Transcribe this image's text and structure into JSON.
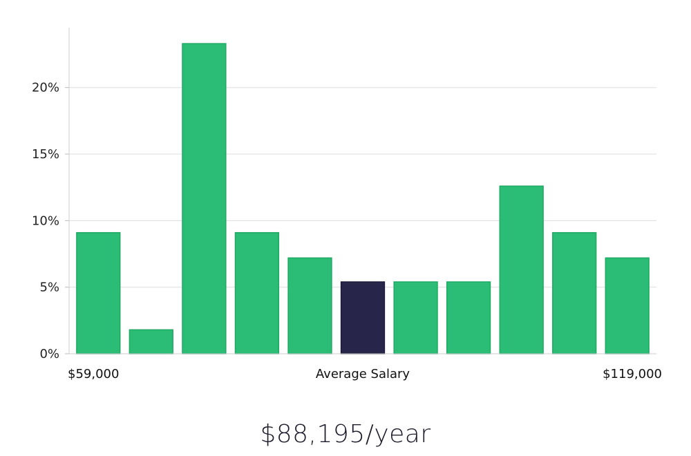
{
  "chart_data": {
    "type": "bar",
    "ylabel": "",
    "xlabel": "Average Salary",
    "x_range_labels": {
      "min": "$59,000",
      "center": "Average Salary",
      "max": "$119,000"
    },
    "ylim": [
      0,
      24.5
    ],
    "yticks": [
      0,
      5,
      10,
      15,
      20
    ],
    "ytick_labels": [
      "0%",
      "5%",
      "10%",
      "15%",
      "20%"
    ],
    "values": [
      9.1,
      1.8,
      23.3,
      9.1,
      7.2,
      5.4,
      5.4,
      5.4,
      12.6,
      9.1,
      7.2
    ],
    "highlight_index": 5,
    "colors": {
      "bar": "#2bbd76",
      "bar_edge": "#1faa63",
      "highlight": "#28254a",
      "grid": "#dddddd",
      "axis": "#cccccc"
    }
  },
  "footer": {
    "salary": "$88,195/year"
  }
}
